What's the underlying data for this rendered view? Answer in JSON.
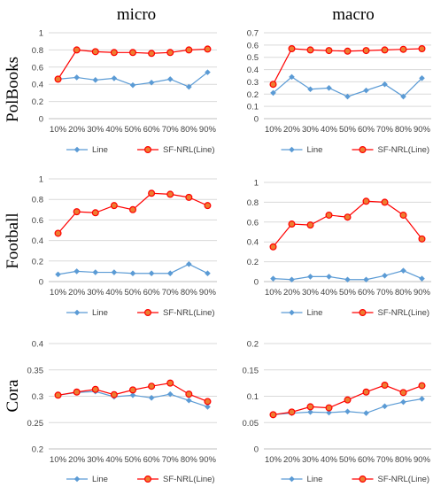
{
  "column_headers": [
    "micro",
    "macro"
  ],
  "row_headers": [
    "PolBooks",
    "Football",
    "Cora"
  ],
  "colors": {
    "line": "#5B9BD5",
    "sfnrl": "#FF0000",
    "sfnrl_fill": "#ED7D31",
    "grid": "#D9D9D9",
    "axis": "#BFBFBF"
  },
  "chart_data": [
    {
      "type": "line",
      "dataset": "PolBooks",
      "metric": "micro",
      "categories": [
        "10%",
        "20%",
        "30%",
        "40%",
        "50%",
        "60%",
        "70%",
        "80%",
        "90%"
      ],
      "ylim": [
        0,
        1
      ],
      "yticks": [
        "0",
        "0.2",
        "0.4",
        "0.6",
        "0.8",
        "1"
      ],
      "series": [
        {
          "name": "Line",
          "values": [
            0.46,
            0.48,
            0.45,
            0.47,
            0.39,
            0.42,
            0.46,
            0.37,
            0.54
          ]
        },
        {
          "name": "SF-NRL(Line)",
          "values": [
            0.46,
            0.8,
            0.78,
            0.77,
            0.77,
            0.76,
            0.77,
            0.8,
            0.81
          ]
        }
      ],
      "legend": "bottom",
      "grid": true
    },
    {
      "type": "line",
      "dataset": "PolBooks",
      "metric": "macro",
      "categories": [
        "10%",
        "20%",
        "30%",
        "40%",
        "50%",
        "60%",
        "70%",
        "80%",
        "90%"
      ],
      "ylim": [
        0,
        0.7
      ],
      "yticks": [
        "0",
        "0.1",
        "0.2",
        "0.3",
        "0.4",
        "0.5",
        "0.6",
        "0.7"
      ],
      "series": [
        {
          "name": "Line",
          "values": [
            0.21,
            0.34,
            0.24,
            0.25,
            0.18,
            0.23,
            0.28,
            0.18,
            0.33
          ]
        },
        {
          "name": "SF-NRL(Line)",
          "values": [
            0.28,
            0.57,
            0.56,
            0.555,
            0.55,
            0.555,
            0.56,
            0.565,
            0.57
          ]
        }
      ],
      "legend": "bottom",
      "grid": true
    },
    {
      "type": "line",
      "dataset": "Football",
      "metric": "micro",
      "categories": [
        "10%",
        "20%",
        "30%",
        "40%",
        "50%",
        "60%",
        "70%",
        "80%",
        "90%"
      ],
      "ylim": [
        0,
        1
      ],
      "yticks": [
        "0",
        "0.2",
        "0.4",
        "0.6",
        "0.8",
        "1"
      ],
      "series": [
        {
          "name": "Line",
          "values": [
            0.07,
            0.1,
            0.09,
            0.09,
            0.08,
            0.08,
            0.08,
            0.17,
            0.08
          ]
        },
        {
          "name": "SF-NRL(Line)",
          "values": [
            0.47,
            0.68,
            0.67,
            0.74,
            0.7,
            0.86,
            0.85,
            0.82,
            0.74
          ]
        }
      ],
      "legend": "bottom",
      "grid": true
    },
    {
      "type": "line",
      "dataset": "Football",
      "metric": "macro",
      "categories": [
        "10%",
        "20%",
        "30%",
        "40%",
        "50%",
        "60%",
        "70%",
        "80%",
        "90%"
      ],
      "ylim": [
        0,
        1
      ],
      "yticks": [
        "0",
        "0.2",
        "0.4",
        "0.6",
        "0.8",
        "1"
      ],
      "series": [
        {
          "name": "Line",
          "values": [
            0.03,
            0.02,
            0.05,
            0.05,
            0.02,
            0.02,
            0.06,
            0.11,
            0.03
          ]
        },
        {
          "name": "SF-NRL(Line)",
          "values": [
            0.35,
            0.58,
            0.57,
            0.67,
            0.65,
            0.81,
            0.8,
            0.67,
            0.43
          ]
        }
      ],
      "legend": "bottom",
      "grid": true
    },
    {
      "type": "line",
      "dataset": "Cora",
      "metric": "micro",
      "categories": [
        "10%",
        "20%",
        "30%",
        "40%",
        "50%",
        "60%",
        "70%",
        "80%",
        "90%"
      ],
      "ylim": [
        0.2,
        0.4
      ],
      "yticks": [
        "0.2",
        "0.25",
        "0.3",
        "0.35",
        "0.4"
      ],
      "series": [
        {
          "name": "Line",
          "values": [
            0.302,
            0.307,
            0.309,
            0.299,
            0.302,
            0.297,
            0.304,
            0.292,
            0.28
          ]
        },
        {
          "name": "SF-NRL(Line)",
          "values": [
            0.302,
            0.308,
            0.313,
            0.303,
            0.312,
            0.319,
            0.325,
            0.304,
            0.29
          ]
        }
      ],
      "legend": "bottom",
      "grid": true
    },
    {
      "type": "line",
      "dataset": "Cora",
      "metric": "macro",
      "categories": [
        "10%",
        "20%",
        "30%",
        "40%",
        "50%",
        "60%",
        "70%",
        "80%",
        "90%"
      ],
      "ylim": [
        0,
        0.2
      ],
      "yticks": [
        "0",
        "0.05",
        "0.1",
        "0.15",
        "0.2"
      ],
      "series": [
        {
          "name": "Line",
          "values": [
            0.065,
            0.068,
            0.07,
            0.069,
            0.071,
            0.068,
            0.081,
            0.089,
            0.095
          ]
        },
        {
          "name": "SF-NRL(Line)",
          "values": [
            0.065,
            0.07,
            0.08,
            0.078,
            0.093,
            0.108,
            0.121,
            0.107,
            0.12
          ]
        }
      ],
      "legend": "bottom",
      "grid": true
    }
  ]
}
